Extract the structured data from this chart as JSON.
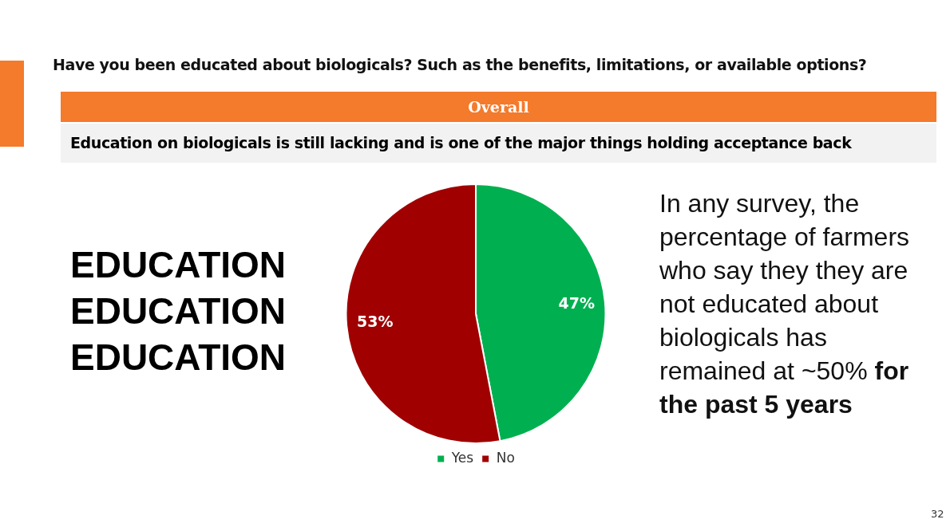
{
  "chart_data": {
    "type": "pie",
    "title": "Have you been educated about biologicals? Such as the benefits, limitations, or available options?",
    "subtitle": "Education on biologicals is still lacking and is one of the major things holding acceptance back",
    "categories": [
      "Yes",
      "No"
    ],
    "values": [
      47,
      53
    ],
    "colors": [
      "#00b050",
      "#a00000"
    ],
    "value_labels": [
      "47%",
      "53%"
    ],
    "legend": "bottom",
    "annotations": [
      "Overall",
      "EDUCATION",
      "EDUCATION",
      "EDUCATION",
      "In any survey, the percentage of farmers who say they they are not educated about biologicals has remained at ~50%",
      "for the past 5 years",
      "32"
    ]
  }
}
